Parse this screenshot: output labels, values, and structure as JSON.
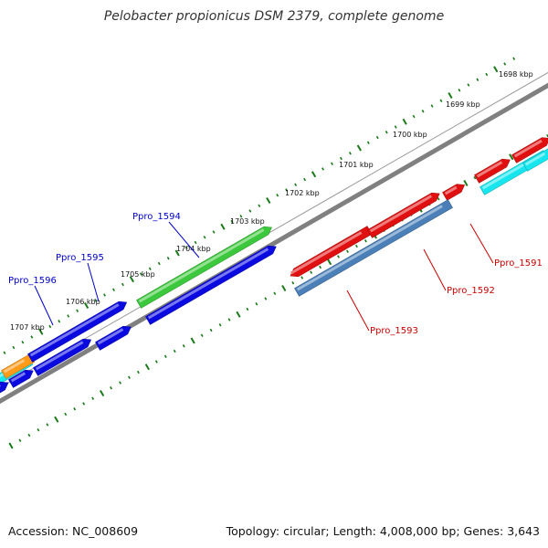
{
  "title": "Pelobacter propionicus DSM 2379, complete genome",
  "footer": {
    "accession": "Accession: NC_008609",
    "summary": "Topology: circular; Length: 4,008,000 bp; Genes: 3,643"
  },
  "colors": {
    "backbone": "#808080",
    "ticks": "#1a7a1a",
    "blue": "#0a0ae0",
    "red": "#e01010",
    "green": "#3cc83c",
    "cyan": "#18e6ee",
    "steelblue": "#4a7fb8",
    "orange": "#ff9a1a",
    "label_blue": "#0000cc",
    "label_red": "#cc0000"
  },
  "scale_labels": [
    "1698 kbp",
    "1699 kbp",
    "1700 kbp",
    "1701 kbp",
    "1702 kbp",
    "1703 kbp",
    "1704 kbp",
    "1705 kbp",
    "1706 kbp",
    "1707 kbp"
  ],
  "gene_labels": [
    {
      "text": "Ppro_1594",
      "color": "blue"
    },
    {
      "text": "Ppro_1595",
      "color": "blue"
    },
    {
      "text": "Ppro_1596",
      "color": "blue"
    },
    {
      "text": "Ppro_1591",
      "color": "red"
    },
    {
      "text": "Ppro_1592",
      "color": "red"
    },
    {
      "text": "Ppro_1593",
      "color": "red"
    }
  ]
}
